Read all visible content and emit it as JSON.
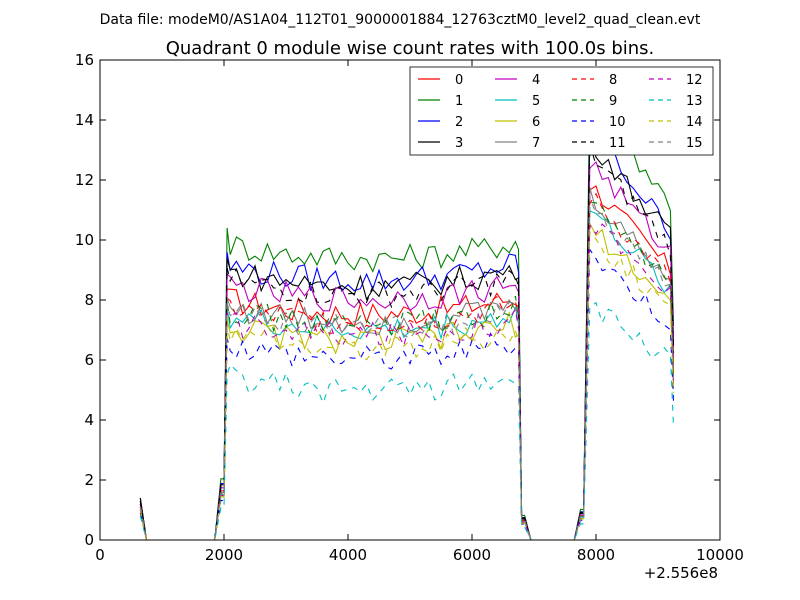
{
  "header": {
    "datafile": "Data file: modeM0/AS1A04_112T01_9000001884_12763cztM0_level2_quad_clean.evt"
  },
  "chart_data": {
    "type": "line",
    "title": "Quadrant 0 module wise count rates with 100.0s bins.",
    "xlabel": "",
    "ylabel": "",
    "x_offset_label": "+2.556e8",
    "xlim": [
      0,
      10000
    ],
    "ylim": [
      0,
      16
    ],
    "x_ticks": [
      0,
      2000,
      4000,
      6000,
      8000,
      10000
    ],
    "y_ticks": [
      0,
      2,
      4,
      6,
      8,
      10,
      12,
      14,
      16
    ],
    "grid": false,
    "legend_position": "top-right",
    "legend_columns": 4,
    "x": [
      650,
      750,
      850,
      950,
      1050,
      1150,
      1250,
      1350,
      1450,
      1550,
      1650,
      1750,
      1850,
      1950,
      2000,
      2050,
      2100,
      2200,
      2300,
      2400,
      2500,
      2600,
      2700,
      2800,
      2900,
      3000,
      3100,
      3200,
      3300,
      3400,
      3500,
      3600,
      3700,
      3800,
      3900,
      4000,
      4100,
      4200,
      4300,
      4400,
      4500,
      4600,
      4700,
      4800,
      4900,
      5000,
      5100,
      5200,
      5300,
      5400,
      5500,
      5600,
      5700,
      5800,
      5900,
      6000,
      6100,
      6200,
      6300,
      6400,
      6500,
      6600,
      6700,
      6750,
      6800,
      6850,
      6950,
      7050,
      7150,
      7250,
      7350,
      7450,
      7550,
      7650,
      7750,
      7800,
      7900,
      8000,
      8100,
      8200,
      8300,
      8400,
      8500,
      8600,
      8700,
      8800,
      8900,
      9000,
      9100,
      9200,
      9250
    ],
    "series": [
      {
        "name": "0",
        "color": "#ff0000",
        "dash": false,
        "base": 8.2,
        "first": 1.2
      },
      {
        "name": "1",
        "color": "#008000",
        "dash": false,
        "base": 10.2,
        "first": 1.4
      },
      {
        "name": "2",
        "color": "#0000ff",
        "dash": false,
        "base": 9.4,
        "first": 1.3
      },
      {
        "name": "3",
        "color": "#000000",
        "dash": false,
        "base": 9.2,
        "first": 1.4
      },
      {
        "name": "4",
        "color": "#bf00bf",
        "dash": false,
        "base": 8.7,
        "first": 1.2
      },
      {
        "name": "5",
        "color": "#00bfbf",
        "dash": false,
        "base": 7.6,
        "first": 1.0
      },
      {
        "name": "6",
        "color": "#bfbf00",
        "dash": false,
        "base": 7.2,
        "first": 1.0
      },
      {
        "name": "7",
        "color": "#808080",
        "dash": false,
        "base": 7.9,
        "first": 1.1
      },
      {
        "name": "8",
        "color": "#ff0000",
        "dash": true,
        "base": 7.9,
        "first": 1.1
      },
      {
        "name": "9",
        "color": "#008000",
        "dash": true,
        "base": 7.8,
        "first": 1.1
      },
      {
        "name": "10",
        "color": "#0000ff",
        "dash": true,
        "base": 6.6,
        "first": 0.9
      },
      {
        "name": "11",
        "color": "#000000",
        "dash": true,
        "base": 8.9,
        "first": 1.3
      },
      {
        "name": "12",
        "color": "#bf00bf",
        "dash": true,
        "base": 7.4,
        "first": 1.0
      },
      {
        "name": "13",
        "color": "#00bfbf",
        "dash": true,
        "base": 5.4,
        "first": 0.8
      },
      {
        "name": "14",
        "color": "#bfbf00",
        "dash": true,
        "base": 7.0,
        "first": 1.0
      },
      {
        "name": "15",
        "color": "#808080",
        "dash": true,
        "base": 7.7,
        "first": 1.1
      }
    ]
  }
}
